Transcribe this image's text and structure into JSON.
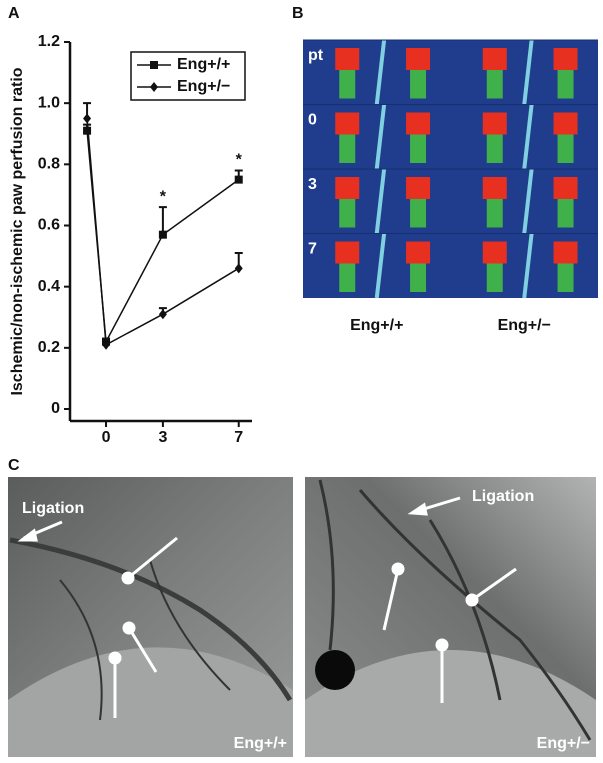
{
  "chart_data": {
    "type": "line",
    "y_label": "Ischemic/non-ischemic paw perfusion ratio",
    "x": [
      -1,
      0,
      3,
      7
    ],
    "xlim": [
      -1.9,
      7.7
    ],
    "xticks": [
      0,
      3,
      7
    ],
    "ylim": [
      0,
      1.2
    ],
    "yticks": [
      0,
      0.2,
      0.4,
      0.6,
      0.8,
      {
        "value": 1.0,
        "label": "1.0"
      },
      1.2
    ],
    "legend": "top-right",
    "series": [
      {
        "name": "Eng+/+",
        "color": "#111111",
        "marker": "square",
        "values": [
          0.91,
          0.22,
          0.57,
          0.75
        ],
        "errors": [
          0.02,
          0.01,
          0.09,
          0.03
        ]
      },
      {
        "name": "Eng+/−",
        "color": "#111111",
        "marker": "diamond",
        "values": [
          0.95,
          0.21,
          0.31,
          0.46
        ],
        "errors": [
          0.05,
          0.01,
          0.02,
          0.05
        ]
      }
    ],
    "significance": [
      {
        "x": 3,
        "label": "*"
      },
      {
        "x": 7,
        "label": "*"
      }
    ]
  },
  "panel_labels": [
    "A",
    "B",
    "C"
  ],
  "perfusion_images": {
    "row_labels": [
      "pt",
      "0",
      "3",
      "7"
    ],
    "column_labels": [
      "Eng+/+",
      "Eng+/−"
    ]
  },
  "angiograms": [
    {
      "annotation": "Ligation",
      "genotype": "Eng+/+"
    },
    {
      "annotation": "Ligation",
      "genotype": "Eng+/−"
    }
  ]
}
